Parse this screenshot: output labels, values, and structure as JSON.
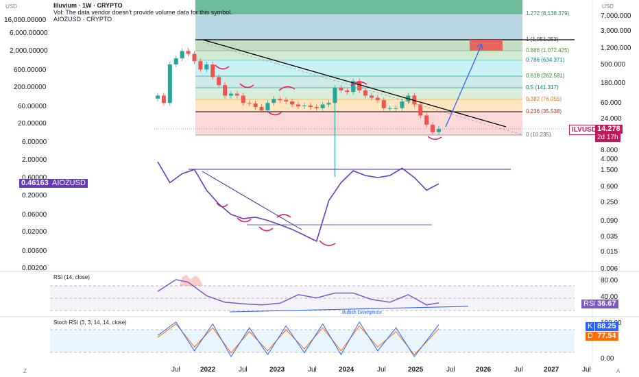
{
  "header": {
    "symbol_line": "Illuvium · 1W · CRYPTO",
    "vol_note": "Vol: The data vendor doesn't provide volume data for this symbol.",
    "compare_symbol": "AIOZUSD · CRYPTO"
  },
  "axis": {
    "left_unit": "USD",
    "right_unit": "USD",
    "left_ticks": [
      "16,000.00000",
      "6,000.00000",
      "2,000.00000",
      "600.00000",
      "200.00000",
      "60.00000",
      "20.00000",
      "6.00000",
      "2.00000",
      "0.60000",
      "0.20000",
      "0.06000",
      "0.02000",
      "0.00600",
      "0.00200"
    ],
    "right_ticks": [
      "7,000.000",
      "3,000.000",
      "1,200.000",
      "500.000",
      "180.000",
      "60.000",
      "24.000",
      "8.000",
      "4.000",
      "1.500",
      "0.600",
      "0.250",
      "0.090",
      "0.035",
      "0.015",
      "0.006"
    ],
    "time_ticks": [
      "Jul",
      "2022",
      "Jul",
      "2023",
      "Jul",
      "2024",
      "Jul",
      "2025",
      "Jul",
      "2026",
      "Jul",
      "2027",
      "Jul"
    ],
    "rsi_ticks": [
      "80.00",
      "40.00"
    ],
    "stoch_ticks": [
      "100.00",
      "0.00"
    ]
  },
  "badges": {
    "ilv_name": "ILVUSD",
    "ilv_price": "14.278",
    "ilv_countdown": "2d 17h",
    "aioz_price": "0.46163",
    "aioz_name": "AIOZUSD",
    "rsi_name": "RSI",
    "rsi_value": "36.67",
    "stoch_k_name": "K",
    "stoch_k_value": "88.25",
    "stoch_d_name": "D",
    "stoch_d_value": "77.54"
  },
  "indicators": {
    "rsi_title": "RSI (14, close)",
    "stoch_title": "Stoch RSI (3, 3, 14, 14, close)",
    "divergence_label": "Bullish Divergence"
  },
  "corner_marks": {
    "left": "Z",
    "right": "A"
  },
  "colors": {
    "up": "#26a69a",
    "down": "#ef5350",
    "trend": "#000000",
    "target_arrow": "#2962ff",
    "aioz_line": "#673ab7",
    "rsi_line": "#7e57c2",
    "stoch_k": "#2962ff",
    "stoch_d": "#ff6d00",
    "ilv_badge": "#c2185b",
    "aioz_badge": "#673ab7",
    "rsi_badge": "#7e57c2",
    "annotation": "#e91e63"
  },
  "chart_data": [
    {
      "type": "candlestick",
      "name": "ILVUSD",
      "scale": "log",
      "x": [
        "2021-07",
        "2021-08",
        "2021-09",
        "2021-10",
        "2021-11",
        "2021-12",
        "2022-01",
        "2022-02",
        "2022-03",
        "2022-04",
        "2022-05",
        "2022-06",
        "2022-07",
        "2022-08",
        "2022-09",
        "2022-10",
        "2022-11",
        "2022-12",
        "2023-01",
        "2023-02",
        "2023-03",
        "2023-04",
        "2023-05",
        "2023-06",
        "2023-07",
        "2023-08",
        "2023-09",
        "2023-10",
        "2023-11",
        "2023-12",
        "2024-01",
        "2024-02",
        "2024-03",
        "2024-04",
        "2024-05",
        "2024-06",
        "2024-07",
        "2024-08",
        "2024-09",
        "2024-10",
        "2024-11",
        "2024-12",
        "2025-01",
        "2025-02",
        "2025-03",
        "2025-04",
        "2025-05"
      ],
      "close": [
        90,
        60,
        500,
        700,
        1050,
        900,
        600,
        380,
        500,
        250,
        160,
        90,
        100,
        90,
        60,
        58,
        48,
        40,
        60,
        75,
        70,
        65,
        55,
        50,
        52,
        48,
        45,
        55,
        60,
        140,
        120,
        110,
        200,
        120,
        90,
        80,
        70,
        45,
        45,
        45,
        65,
        90,
        55,
        30,
        18,
        12,
        14.278
      ],
      "fib_levels": [
        {
          "ratio": "1.272",
          "price": "8,138.379"
        },
        {
          "ratio": "1",
          "price": "1,951.253"
        },
        {
          "ratio": "0.886",
          "price": "1,072.425"
        },
        {
          "ratio": "0.786",
          "price": "634.371"
        },
        {
          "ratio": "0.618",
          "price": "262.581"
        },
        {
          "ratio": "0.5",
          "price": "141.317"
        },
        {
          "ratio": "0.382",
          "price": "76.055"
        },
        {
          "ratio": "0.236",
          "price": "35.538"
        },
        {
          "ratio": "0",
          "price": "10.235"
        }
      ]
    },
    {
      "type": "line",
      "name": "AIOZUSD",
      "scale": "log",
      "x": [
        "2021-07",
        "2021-09",
        "2021-11",
        "2022-01",
        "2022-03",
        "2022-05",
        "2022-07",
        "2022-09",
        "2022-11",
        "2023-01",
        "2023-03",
        "2023-05",
        "2023-07",
        "2023-09",
        "2023-11",
        "2024-01",
        "2024-03",
        "2024-05",
        "2024-07",
        "2024-09",
        "2024-11",
        "2025-01",
        "2025-03",
        "2025-05"
      ],
      "values": [
        2.0,
        0.5,
        0.9,
        1.2,
        0.3,
        0.12,
        0.06,
        0.045,
        0.05,
        0.04,
        0.03,
        0.022,
        0.015,
        0.01,
        0.15,
        0.5,
        1.1,
        0.8,
        0.7,
        0.8,
        1.3,
        0.7,
        0.3,
        0.46163
      ]
    },
    {
      "type": "line",
      "name": "RSI",
      "x": [
        "2021-07",
        "2021-10",
        "2021-12",
        "2022-03",
        "2022-06",
        "2022-09",
        "2022-12",
        "2023-03",
        "2023-06",
        "2023-09",
        "2023-12",
        "2024-03",
        "2024-06",
        "2024-09",
        "2024-12",
        "2025-03",
        "2025-05"
      ],
      "values": [
        58,
        80,
        75,
        50,
        38,
        35,
        33,
        36,
        52,
        46,
        55,
        55,
        43,
        38,
        52,
        33,
        36.67
      ],
      "ylim": [
        20,
        90
      ]
    },
    {
      "type": "line",
      "name": "Stoch RSI",
      "x": [
        "2021-07",
        "2021-10",
        "2022-01",
        "2022-04",
        "2022-07",
        "2022-10",
        "2023-01",
        "2023-04",
        "2023-07",
        "2023-10",
        "2024-01",
        "2024-04",
        "2024-07",
        "2024-10",
        "2025-01",
        "2025-05"
      ],
      "series": [
        {
          "name": "K",
          "values": [
            60,
            95,
            20,
            90,
            5,
            80,
            10,
            85,
            15,
            90,
            10,
            95,
            20,
            80,
            5,
            88.25
          ]
        },
        {
          "name": "D",
          "values": [
            55,
            90,
            30,
            80,
            15,
            70,
            20,
            75,
            25,
            80,
            20,
            85,
            30,
            70,
            10,
            77.54
          ]
        }
      ],
      "ylim": [
        0,
        100
      ]
    }
  ]
}
